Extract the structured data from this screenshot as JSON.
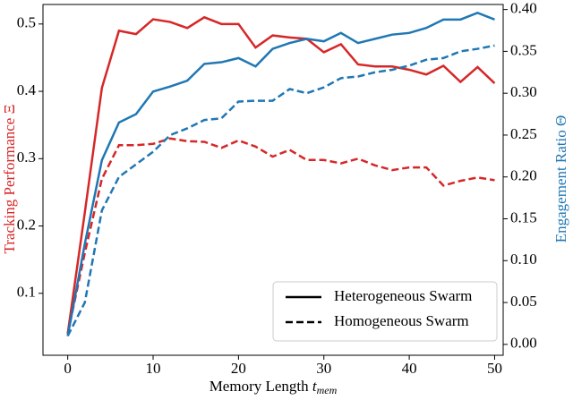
{
  "chart_data": {
    "type": "line",
    "x_label": {
      "text": "Memory Length",
      "symbol": "t",
      "subscript": "mem"
    },
    "y_label": "Tracking Performance Ξ",
    "y2_label": "Engagement Ratio Θ",
    "y_label_color": "#d62728",
    "y2_label_color": "#1f77b4",
    "x": [
      0,
      2,
      4,
      6,
      8,
      10,
      12,
      14,
      16,
      18,
      20,
      22,
      24,
      26,
      28,
      30,
      32,
      34,
      36,
      38,
      40,
      42,
      44,
      46,
      48,
      50
    ],
    "xlim": [
      -2.9,
      51
    ],
    "xticks": [
      0,
      10,
      20,
      30,
      40,
      50
    ],
    "ylim": [
      0.008,
      0.529
    ],
    "yticks": [
      0.1,
      0.2,
      0.3,
      0.4,
      0.5
    ],
    "y2lim": [
      -0.013,
      0.406
    ],
    "y2ticks": [
      {
        "value": 0,
        "label": "0.00"
      },
      {
        "value": 0.05,
        "label": "0.05"
      },
      {
        "value": 0.1,
        "label": "0.10"
      },
      {
        "value": 0.15,
        "label": "0.15"
      },
      {
        "value": 0.2,
        "label": "0.20"
      },
      {
        "value": 0.25,
        "label": "0.25"
      },
      {
        "value": 0.3,
        "label": "0.30"
      },
      {
        "value": 0.35,
        "label": "0.35"
      },
      {
        "value": 0.4,
        "label": "0.40"
      }
    ],
    "series": [
      {
        "color": "#d62728",
        "style": "solid",
        "axis": "y",
        "values": [
          0.04,
          0.22,
          0.405,
          0.49,
          0.485,
          0.507,
          0.503,
          0.494,
          0.51,
          0.5,
          0.5,
          0.465,
          0.483,
          0.48,
          0.478,
          0.458,
          0.47,
          0.44,
          0.437,
          0.437,
          0.432,
          0.425,
          0.438,
          0.414,
          0.436,
          0.412
        ]
      },
      {
        "color": "#d62728",
        "style": "dashed",
        "axis": "y",
        "values": [
          0.04,
          0.16,
          0.27,
          0.32,
          0.32,
          0.322,
          0.33,
          0.326,
          0.325,
          0.316,
          0.327,
          0.318,
          0.303,
          0.313,
          0.298,
          0.298,
          0.293,
          0.3,
          0.29,
          0.283,
          0.287,
          0.287,
          0.26,
          0.267,
          0.272,
          0.268
        ]
      },
      {
        "color": "#1f77b4",
        "style": "solid",
        "axis": "y2",
        "values": [
          0.01,
          0.12,
          0.22,
          0.265,
          0.275,
          0.302,
          0.308,
          0.315,
          0.335,
          0.337,
          0.342,
          0.332,
          0.353,
          0.36,
          0.365,
          0.362,
          0.372,
          0.36,
          0.365,
          0.37,
          0.372,
          0.378,
          0.388,
          0.388,
          0.396,
          0.388
        ]
      },
      {
        "color": "#1f77b4",
        "style": "dashed",
        "axis": "y2",
        "values": [
          0.01,
          0.05,
          0.16,
          0.2,
          0.215,
          0.23,
          0.25,
          0.258,
          0.268,
          0.27,
          0.29,
          0.291,
          0.291,
          0.305,
          0.3,
          0.307,
          0.318,
          0.32,
          0.325,
          0.328,
          0.333,
          0.34,
          0.342,
          0.35,
          0.353,
          0.357
        ]
      }
    ],
    "legend": [
      {
        "label": "Heterogeneous Swarm",
        "style": "solid"
      },
      {
        "label": "Homogeneous Swarm",
        "style": "dashed"
      }
    ],
    "legend_position": "lower right"
  }
}
